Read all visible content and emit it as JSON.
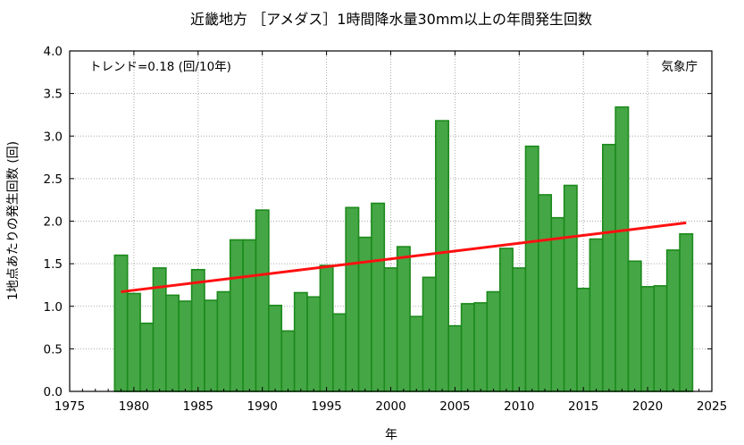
{
  "chart_data": {
    "type": "bar",
    "title": "近畿地方 ［アメダス］1時間降水量30mm以上の年間発生回数",
    "xlabel": "年",
    "ylabel": "1地点あたりの発生回数 (回)",
    "trend_text": "トレンド=0.18 (回/10年)",
    "source_text": "気象庁",
    "xlim": [
      1975,
      2025
    ],
    "ylim": [
      0,
      4
    ],
    "x_ticks": [
      1975,
      1980,
      1985,
      1990,
      1995,
      2000,
      2005,
      2010,
      2015,
      2020,
      2025
    ],
    "x_tick_labels": [
      "1975",
      "1980",
      "1985",
      "1990",
      "1995",
      "2000",
      "2005",
      "2010",
      "2015",
      "2020",
      "2025"
    ],
    "y_ticks": [
      0,
      0.5,
      1,
      1.5,
      2,
      2.5,
      3,
      3.5,
      4
    ],
    "y_tick_labels": [
      "0.0",
      "0.5",
      "1.0",
      "1.5",
      "2.0",
      "2.5",
      "3.0",
      "3.5",
      "4.0"
    ],
    "grid": true,
    "series": [
      {
        "type": "bar",
        "color": "#45a645",
        "edge_color": "#1c8a1c",
        "x": [
          1979,
          1980,
          1981,
          1982,
          1983,
          1984,
          1985,
          1986,
          1987,
          1988,
          1989,
          1990,
          1991,
          1992,
          1993,
          1994,
          1995,
          1996,
          1997,
          1998,
          1999,
          2000,
          2001,
          2002,
          2003,
          2004,
          2005,
          2006,
          2007,
          2008,
          2009,
          2010,
          2011,
          2012,
          2013,
          2014,
          2015,
          2016,
          2017,
          2018,
          2019,
          2020,
          2021,
          2022,
          2023
        ],
        "values": [
          1.6,
          1.15,
          0.8,
          1.45,
          1.13,
          1.06,
          1.43,
          1.07,
          1.17,
          1.78,
          1.78,
          2.13,
          1.01,
          0.71,
          1.16,
          1.11,
          1.48,
          0.91,
          2.16,
          1.81,
          2.21,
          1.45,
          1.7,
          0.88,
          1.34,
          3.18,
          0.77,
          1.03,
          1.04,
          1.17,
          1.68,
          1.45,
          2.88,
          2.31,
          2.04,
          2.42,
          1.21,
          1.79,
          2.9,
          3.34,
          1.53,
          1.23,
          1.24,
          1.66,
          1.85
        ]
      },
      {
        "type": "line",
        "color": "#ff1010",
        "x": [
          1979,
          2023
        ],
        "values": [
          1.17,
          1.98
        ]
      }
    ]
  }
}
